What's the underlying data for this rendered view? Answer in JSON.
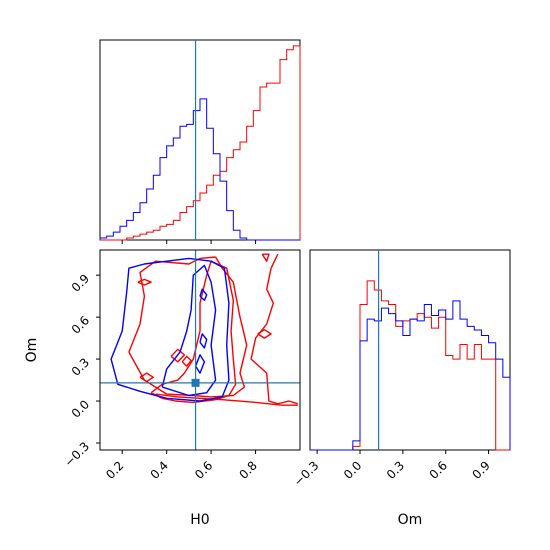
{
  "colors": {
    "red": "#ff0000",
    "blue": "#0000ff",
    "truth": "#1f77b4"
  },
  "chart_data": [
    {
      "panel": "H0 marginal",
      "type": "histogram",
      "xlim": [
        0.1,
        1.0
      ],
      "bin_edges": [
        0.1,
        0.13,
        0.16,
        0.19,
        0.22,
        0.25,
        0.28,
        0.31,
        0.34,
        0.37,
        0.4,
        0.43,
        0.46,
        0.49,
        0.52,
        0.55,
        0.58,
        0.61,
        0.64,
        0.67,
        0.7,
        0.73,
        0.76,
        0.79,
        0.82,
        0.85,
        0.88,
        0.91,
        0.94,
        0.97,
        1.0
      ],
      "series": [
        {
          "color": "#ff0000",
          "counts": [
            0,
            0,
            0,
            0,
            1,
            2,
            3,
            4,
            5,
            7,
            8,
            10,
            14,
            17,
            20,
            24,
            28,
            33,
            35,
            42,
            46,
            50,
            58,
            66,
            78,
            80,
            80,
            92,
            97,
            99
          ]
        },
        {
          "color": "#0000ff",
          "counts": [
            1,
            2,
            4,
            7,
            10,
            14,
            19,
            26,
            33,
            42,
            48,
            52,
            58,
            59,
            66,
            72,
            57,
            44,
            30,
            15,
            5,
            1,
            0,
            0,
            0,
            0,
            0,
            0,
            0,
            0
          ]
        }
      ],
      "truth_x": 0.53
    },
    {
      "panel": "H0 vs Om",
      "type": "contour",
      "xlabel": "H0",
      "ylabel": "Om",
      "xlim": [
        0.1,
        1.0
      ],
      "ylim": [
        -0.35,
        1.08
      ],
      "x_ticks": [
        "0.2",
        "0.4",
        "0.6",
        "0.8"
      ],
      "y_ticks": [
        "−0.3",
        "0.0",
        "0.3",
        "0.6",
        "0.9"
      ],
      "truth": {
        "x": 0.53,
        "y": 0.13
      },
      "red_contours": [
        [
          [
            0.35,
            0.05
          ],
          [
            0.45,
            0.03
          ],
          [
            0.55,
            0.02
          ],
          [
            0.65,
            0.01
          ],
          [
            0.8,
            -0.01
          ],
          [
            0.92,
            -0.03
          ],
          [
            0.99,
            -0.03
          ]
        ],
        [
          [
            0.99,
            -0.02
          ],
          [
            0.95,
            0.0
          ],
          [
            0.9,
            -0.02
          ],
          [
            0.86,
            0.0
          ],
          [
            0.85,
            0.2
          ],
          [
            0.78,
            0.3
          ],
          [
            0.8,
            0.45
          ],
          [
            0.85,
            0.55
          ],
          [
            0.88,
            0.7
          ],
          [
            0.85,
            0.8
          ],
          [
            0.87,
            0.95
          ],
          [
            0.9,
            1.05
          ]
        ],
        [
          [
            0.23,
            0.35
          ],
          [
            0.28,
            0.55
          ],
          [
            0.3,
            0.75
          ],
          [
            0.28,
            0.92
          ],
          [
            0.35,
            1.0
          ],
          [
            0.5,
            0.98
          ],
          [
            0.55,
            1.02
          ],
          [
            0.62,
            1.03
          ]
        ],
        [
          [
            0.62,
            1.03
          ],
          [
            0.65,
            0.95
          ],
          [
            0.7,
            0.85
          ],
          [
            0.73,
            0.6
          ],
          [
            0.76,
            0.4
          ],
          [
            0.73,
            0.2
          ],
          [
            0.75,
            0.1
          ],
          [
            0.7,
            0.04
          ],
          [
            0.6,
            0.03
          ],
          [
            0.52,
            0.04
          ],
          [
            0.4,
            0.05
          ],
          [
            0.3,
            0.15
          ],
          [
            0.23,
            0.35
          ]
        ],
        [
          [
            0.33,
            0.06
          ],
          [
            0.38,
            0.02
          ],
          [
            0.44,
            0.0
          ],
          [
            0.52,
            -0.01
          ],
          [
            0.62,
            0.01
          ],
          [
            0.68,
            0.04
          ],
          [
            0.71,
            0.12
          ],
          [
            0.7,
            0.3
          ],
          [
            0.69,
            0.5
          ],
          [
            0.7,
            0.72
          ],
          [
            0.67,
            0.95
          ],
          [
            0.6,
            1.0
          ],
          [
            0.58,
            0.9
          ],
          [
            0.55,
            0.7
          ],
          [
            0.55,
            0.5
          ],
          [
            0.52,
            0.3
          ],
          [
            0.48,
            0.2
          ],
          [
            0.45,
            0.15
          ],
          [
            0.38,
            0.12
          ],
          [
            0.33,
            0.06
          ]
        ],
        [
          [
            0.27,
            0.85
          ],
          [
            0.3,
            0.83
          ],
          [
            0.33,
            0.85
          ],
          [
            0.3,
            0.87
          ],
          [
            0.27,
            0.85
          ]
        ],
        [
          [
            0.81,
            0.48
          ],
          [
            0.84,
            0.45
          ],
          [
            0.87,
            0.48
          ],
          [
            0.84,
            0.51
          ],
          [
            0.81,
            0.48
          ]
        ],
        [
          [
            0.83,
            1.05
          ],
          [
            0.85,
            1.0
          ],
          [
            0.86,
            1.05
          ],
          [
            0.83,
            1.05
          ]
        ],
        [
          [
            0.28,
            0.17
          ],
          [
            0.31,
            0.14
          ],
          [
            0.34,
            0.17
          ],
          [
            0.31,
            0.2
          ],
          [
            0.28,
            0.17
          ]
        ],
        [
          [
            0.42,
            0.32
          ],
          [
            0.45,
            0.28
          ],
          [
            0.48,
            0.33
          ],
          [
            0.45,
            0.37
          ],
          [
            0.42,
            0.32
          ]
        ],
        [
          [
            0.47,
            0.28
          ],
          [
            0.49,
            0.25
          ],
          [
            0.51,
            0.29
          ],
          [
            0.49,
            0.32
          ],
          [
            0.47,
            0.28
          ]
        ]
      ],
      "blue_contours": [
        [
          [
            0.22,
            0.78
          ],
          [
            0.2,
            0.5
          ],
          [
            0.15,
            0.3
          ],
          [
            0.18,
            0.12
          ],
          [
            0.28,
            0.07
          ],
          [
            0.4,
            0.02
          ],
          [
            0.55,
            0.0
          ],
          [
            0.65,
            0.03
          ],
          [
            0.68,
            0.15
          ],
          [
            0.67,
            0.4
          ],
          [
            0.68,
            0.7
          ],
          [
            0.66,
            0.95
          ],
          [
            0.6,
            1.0
          ],
          [
            0.5,
            1.02
          ],
          [
            0.4,
            1.0
          ],
          [
            0.3,
            0.98
          ],
          [
            0.23,
            0.95
          ],
          [
            0.22,
            0.78
          ]
        ],
        [
          [
            0.38,
            0.1
          ],
          [
            0.5,
            0.04
          ],
          [
            0.58,
            0.06
          ],
          [
            0.62,
            0.15
          ],
          [
            0.6,
            0.4
          ],
          [
            0.62,
            0.65
          ],
          [
            0.6,
            0.85
          ],
          [
            0.57,
            0.97
          ],
          [
            0.52,
            0.9
          ],
          [
            0.51,
            0.65
          ],
          [
            0.49,
            0.5
          ],
          [
            0.46,
            0.35
          ],
          [
            0.4,
            0.23
          ],
          [
            0.38,
            0.1
          ]
        ],
        [
          [
            0.53,
            0.25
          ],
          [
            0.55,
            0.2
          ],
          [
            0.57,
            0.28
          ],
          [
            0.55,
            0.33
          ],
          [
            0.53,
            0.25
          ]
        ],
        [
          [
            0.55,
            0.42
          ],
          [
            0.57,
            0.38
          ],
          [
            0.58,
            0.44
          ],
          [
            0.56,
            0.48
          ],
          [
            0.55,
            0.42
          ]
        ],
        [
          [
            0.55,
            0.75
          ],
          [
            0.57,
            0.72
          ],
          [
            0.58,
            0.76
          ],
          [
            0.56,
            0.8
          ],
          [
            0.55,
            0.75
          ]
        ]
      ]
    },
    {
      "panel": "Om marginal",
      "type": "histogram",
      "xlabel": "Om",
      "xlim": [
        -0.35,
        1.05
      ],
      "x_ticks": [
        "−0.3",
        "0.0",
        "0.3",
        "0.6",
        "0.9"
      ],
      "bin_edges": [
        -0.35,
        -0.3,
        -0.25,
        -0.2,
        -0.15,
        -0.1,
        -0.05,
        0.0,
        0.05,
        0.1,
        0.15,
        0.2,
        0.25,
        0.3,
        0.35,
        0.4,
        0.45,
        0.5,
        0.55,
        0.6,
        0.65,
        0.7,
        0.75,
        0.8,
        0.85,
        0.9,
        0.95,
        1.0,
        1.05
      ],
      "series": [
        {
          "color": "#ff0000",
          "counts": [
            0,
            0,
            0,
            0,
            0,
            0,
            2,
            80,
            93,
            88,
            82,
            80,
            68,
            71,
            72,
            75,
            73,
            67,
            73,
            52,
            50,
            58,
            50,
            58,
            50,
            50,
            0,
            0
          ]
        },
        {
          "color": "#0000ff",
          "counts": [
            0,
            0,
            0,
            0,
            0,
            0,
            5,
            60,
            72,
            71,
            78,
            75,
            71,
            63,
            72,
            71,
            80,
            74,
            77,
            72,
            82,
            72,
            68,
            66,
            63,
            59,
            50,
            40
          ]
        }
      ],
      "truth_x": 0.13
    }
  ]
}
